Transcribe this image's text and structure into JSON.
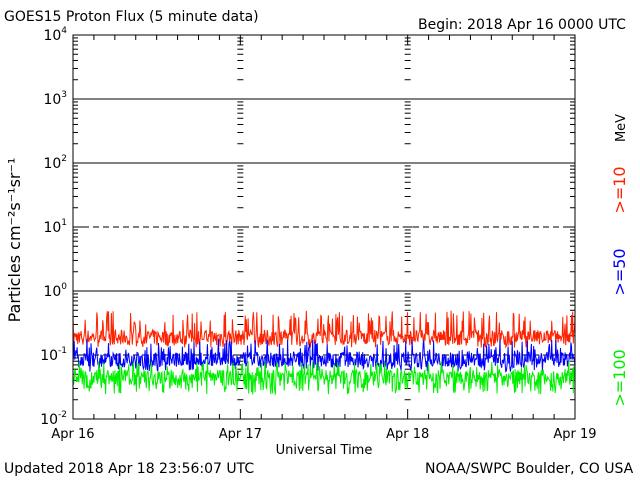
{
  "header": {
    "title": "GOES15 Proton Flux (5 minute data)",
    "begin": "Begin: 2018 Apr 16 0000 UTC"
  },
  "footer": {
    "updated": "Updated 2018 Apr 18 23:56:07 UTC",
    "credit": "NOAA/SWPC Boulder, CO USA"
  },
  "chart_data": {
    "type": "line",
    "title": "GOES15 Proton Flux (5 minute data)",
    "xlabel": "Universal Time",
    "ylabel": "Particles cm⁻²s⁻¹sr⁻¹",
    "y_scale": "log",
    "ylim": [
      0.01,
      10000
    ],
    "x_ticks": [
      "Apr 16",
      "Apr 17",
      "Apr 18",
      "Apr 19"
    ],
    "y_ticks": [
      {
        "base": "10",
        "exp": "-2",
        "value": 0.01
      },
      {
        "base": "10",
        "exp": "-1",
        "value": 0.1
      },
      {
        "base": "10",
        "exp": "0",
        "value": 1
      },
      {
        "base": "10",
        "exp": "1",
        "value": 10
      },
      {
        "base": "10",
        "exp": "2",
        "value": 100
      },
      {
        "base": "10",
        "exp": "3",
        "value": 1000
      },
      {
        "base": "10",
        "exp": "4",
        "value": 10000
      }
    ],
    "threshold_lines": [
      {
        "value": 0.1,
        "style": "dashed"
      },
      {
        "value": 1,
        "style": "solid"
      },
      {
        "value": 10,
        "style": "dashed"
      },
      {
        "value": 100,
        "style": "solid"
      },
      {
        "value": 1000,
        "style": "solid"
      }
    ],
    "energy_unit": "MeV",
    "grid": true,
    "series": [
      {
        "name": ">=10",
        "color": "#ff2200",
        "base": 0.19,
        "low": 0.13,
        "high": 0.5
      },
      {
        "name": ">=50",
        "color": "#0000ff",
        "base": 0.085,
        "low": 0.055,
        "high": 0.18
      },
      {
        "name": ">=100",
        "color": "#00ee00",
        "base": 0.045,
        "low": 0.024,
        "high": 0.08
      }
    ]
  }
}
